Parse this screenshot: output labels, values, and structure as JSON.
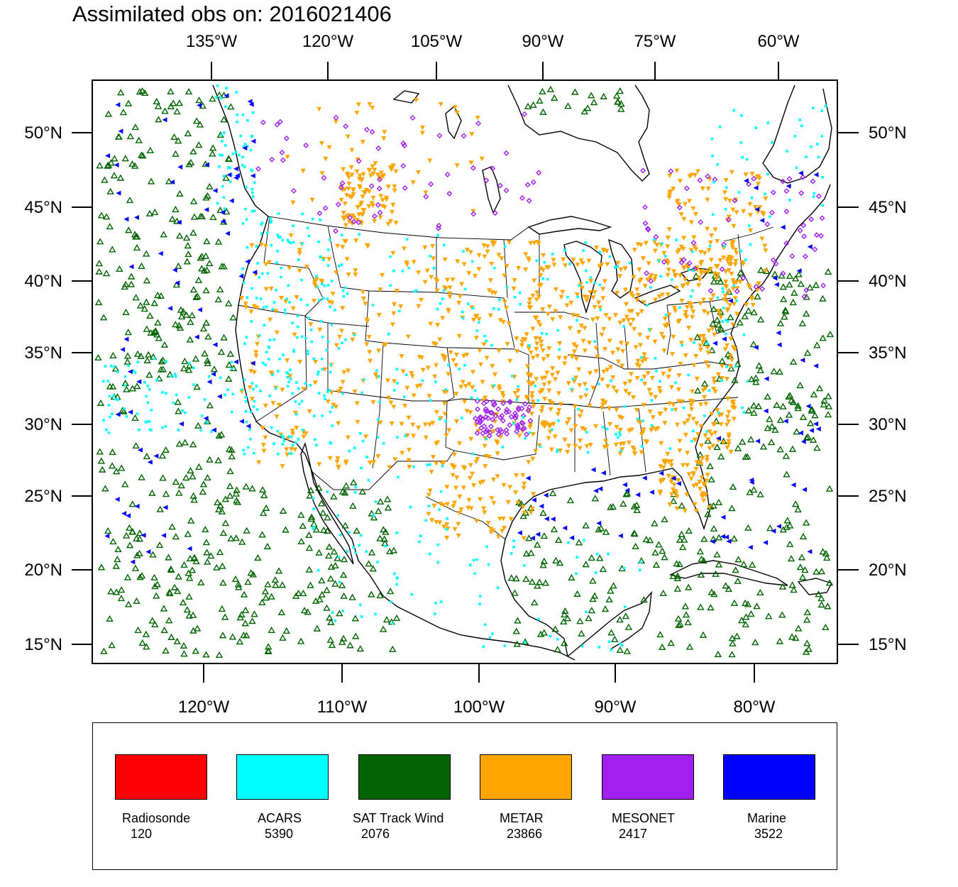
{
  "title": "Assimilated obs on: 2016021406",
  "axes": {
    "top_lon_labels": [
      "135°W",
      "120°W",
      "105°W",
      "90°W",
      "75°W",
      "60°W"
    ],
    "bottom_lon_labels": [
      "120°W",
      "110°W",
      "100°W",
      "90°W",
      "80°W"
    ],
    "left_lat_labels": [
      "50°N",
      "45°N",
      "40°N",
      "35°N",
      "30°N",
      "25°N",
      "20°N",
      "15°N"
    ],
    "right_lat_labels": [
      "50°N",
      "45°N",
      "40°N",
      "35°N",
      "30°N",
      "25°N",
      "20°N",
      "15°N"
    ]
  },
  "legend": {
    "items": [
      {
        "label": "Radiosonde",
        "count": "120",
        "color": "#ff0000"
      },
      {
        "label": "ACARS",
        "count": "5390",
        "color": "#00ffff"
      },
      {
        "label": "SAT Track Wind",
        "count": "2076",
        "color": "#006400"
      },
      {
        "label": "METAR",
        "count": "23866",
        "color": "#ffa500"
      },
      {
        "label": "MESONET",
        "count": "2417",
        "color": "#a020f0"
      },
      {
        "label": "Marine",
        "count": "3522",
        "color": "#0000ff"
      }
    ]
  },
  "map": {
    "region": "Continental United States, Mexico, Caribbean and adjacent oceans",
    "lat_range": [
      14,
      53
    ],
    "lon_range": [
      -128,
      -74
    ],
    "markers": {
      "ACARS": "cyan-square",
      "SAT Track Wind": "green-triangle-outline",
      "METAR": "orange-triangle-down",
      "MESONET": "purple-diamond",
      "Marine": "blue-triangle-left"
    }
  }
}
